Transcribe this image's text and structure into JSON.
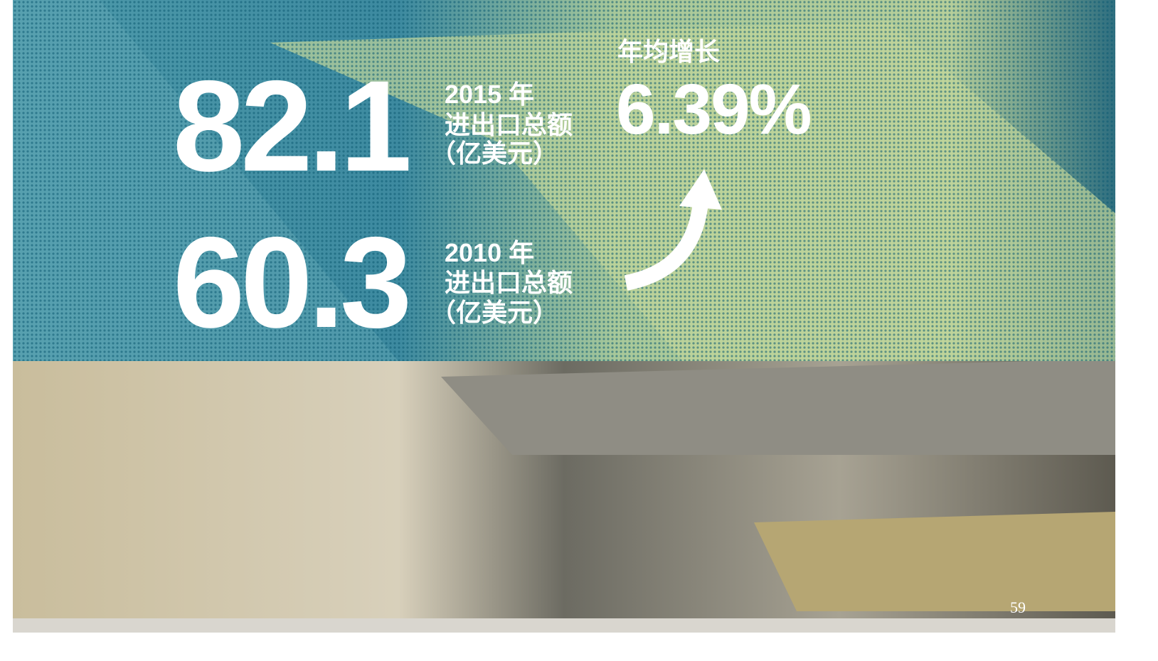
{
  "stats": [
    {
      "value": "82.1",
      "year": "2015 年",
      "label": "进出口总额",
      "unit": "（亿美元）"
    },
    {
      "value": "60.3",
      "year": "2010 年",
      "label": "进出口总额",
      "unit": "（亿美元）"
    }
  ],
  "growth": {
    "label": "年均增长",
    "value": "6.39%"
  },
  "page_number": "59"
}
